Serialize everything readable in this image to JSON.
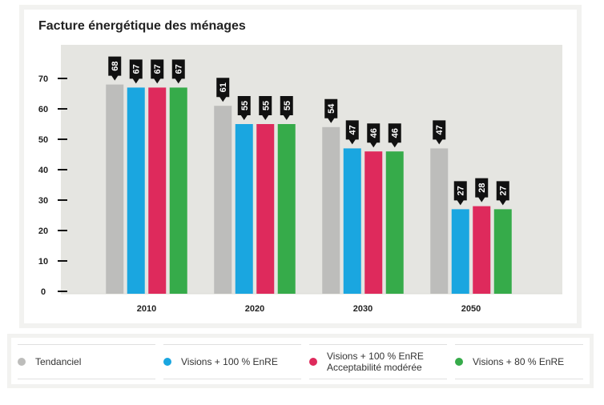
{
  "chart_data": {
    "type": "bar",
    "title": "Facture énergétique des ménages",
    "categories": [
      "2010",
      "2020",
      "2030",
      "2050"
    ],
    "yticks": [
      "0",
      "10",
      "20",
      "30",
      "40",
      "50",
      "60",
      "70"
    ],
    "ylim": [
      0,
      80
    ],
    "grid": false,
    "legend_position": "bottom",
    "series": [
      {
        "name": "Tendanciel",
        "color": "#bdbdbb",
        "values": [
          68,
          61,
          54,
          47
        ]
      },
      {
        "name": "Visions + 100 % EnRE",
        "color": "#1aa6e0",
        "values": [
          67,
          55,
          47,
          27
        ]
      },
      {
        "name": "Visions + 100 % EnRE\nAcceptabilité modérée",
        "color": "#de2a5c",
        "values": [
          67,
          55,
          46,
          28
        ]
      },
      {
        "name": "Visions + 80 % EnRE",
        "color": "#36ab4a",
        "values": [
          67,
          55,
          46,
          27
        ]
      }
    ]
  }
}
